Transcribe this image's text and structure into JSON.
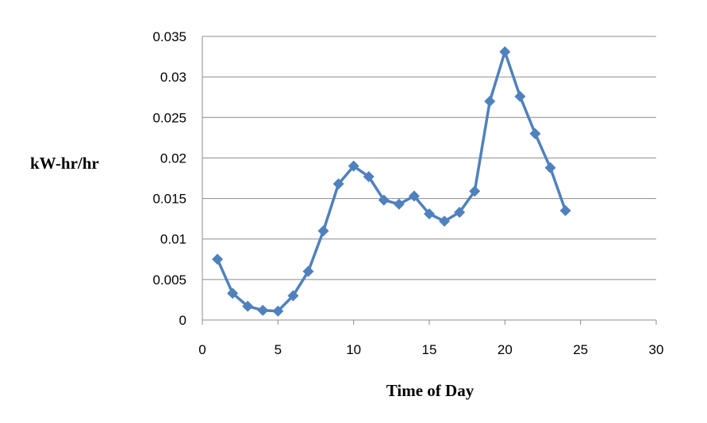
{
  "chart_data": {
    "type": "line",
    "title": "",
    "xlabel": "Time of Day",
    "ylabel": "kW-hr/hr",
    "xlim": [
      0,
      30
    ],
    "ylim": [
      0,
      0.035
    ],
    "x_ticks": [
      "0",
      "5",
      "10",
      "15",
      "20",
      "25",
      "30"
    ],
    "y_ticks": [
      "0",
      "0.005",
      "0.01",
      "0.015",
      "0.02",
      "0.025",
      "0.03",
      "0.035"
    ],
    "grid": "horizontal",
    "legend": "none",
    "series": [
      {
        "color": "#4f81bd",
        "marker": "diamond",
        "x": [
          1,
          2,
          3,
          4,
          5,
          6,
          7,
          8,
          9,
          10,
          11,
          12,
          13,
          14,
          15,
          16,
          17,
          18,
          19,
          20,
          21,
          22,
          23,
          24
        ],
        "y": [
          0.0075,
          0.0033,
          0.0017,
          0.0012,
          0.0011,
          0.003,
          0.006,
          0.011,
          0.0168,
          0.019,
          0.0177,
          0.0148,
          0.0143,
          0.0153,
          0.0131,
          0.0122,
          0.0133,
          0.0159,
          0.027,
          0.0331,
          0.0276,
          0.023,
          0.0188,
          0.0135
        ]
      }
    ]
  }
}
